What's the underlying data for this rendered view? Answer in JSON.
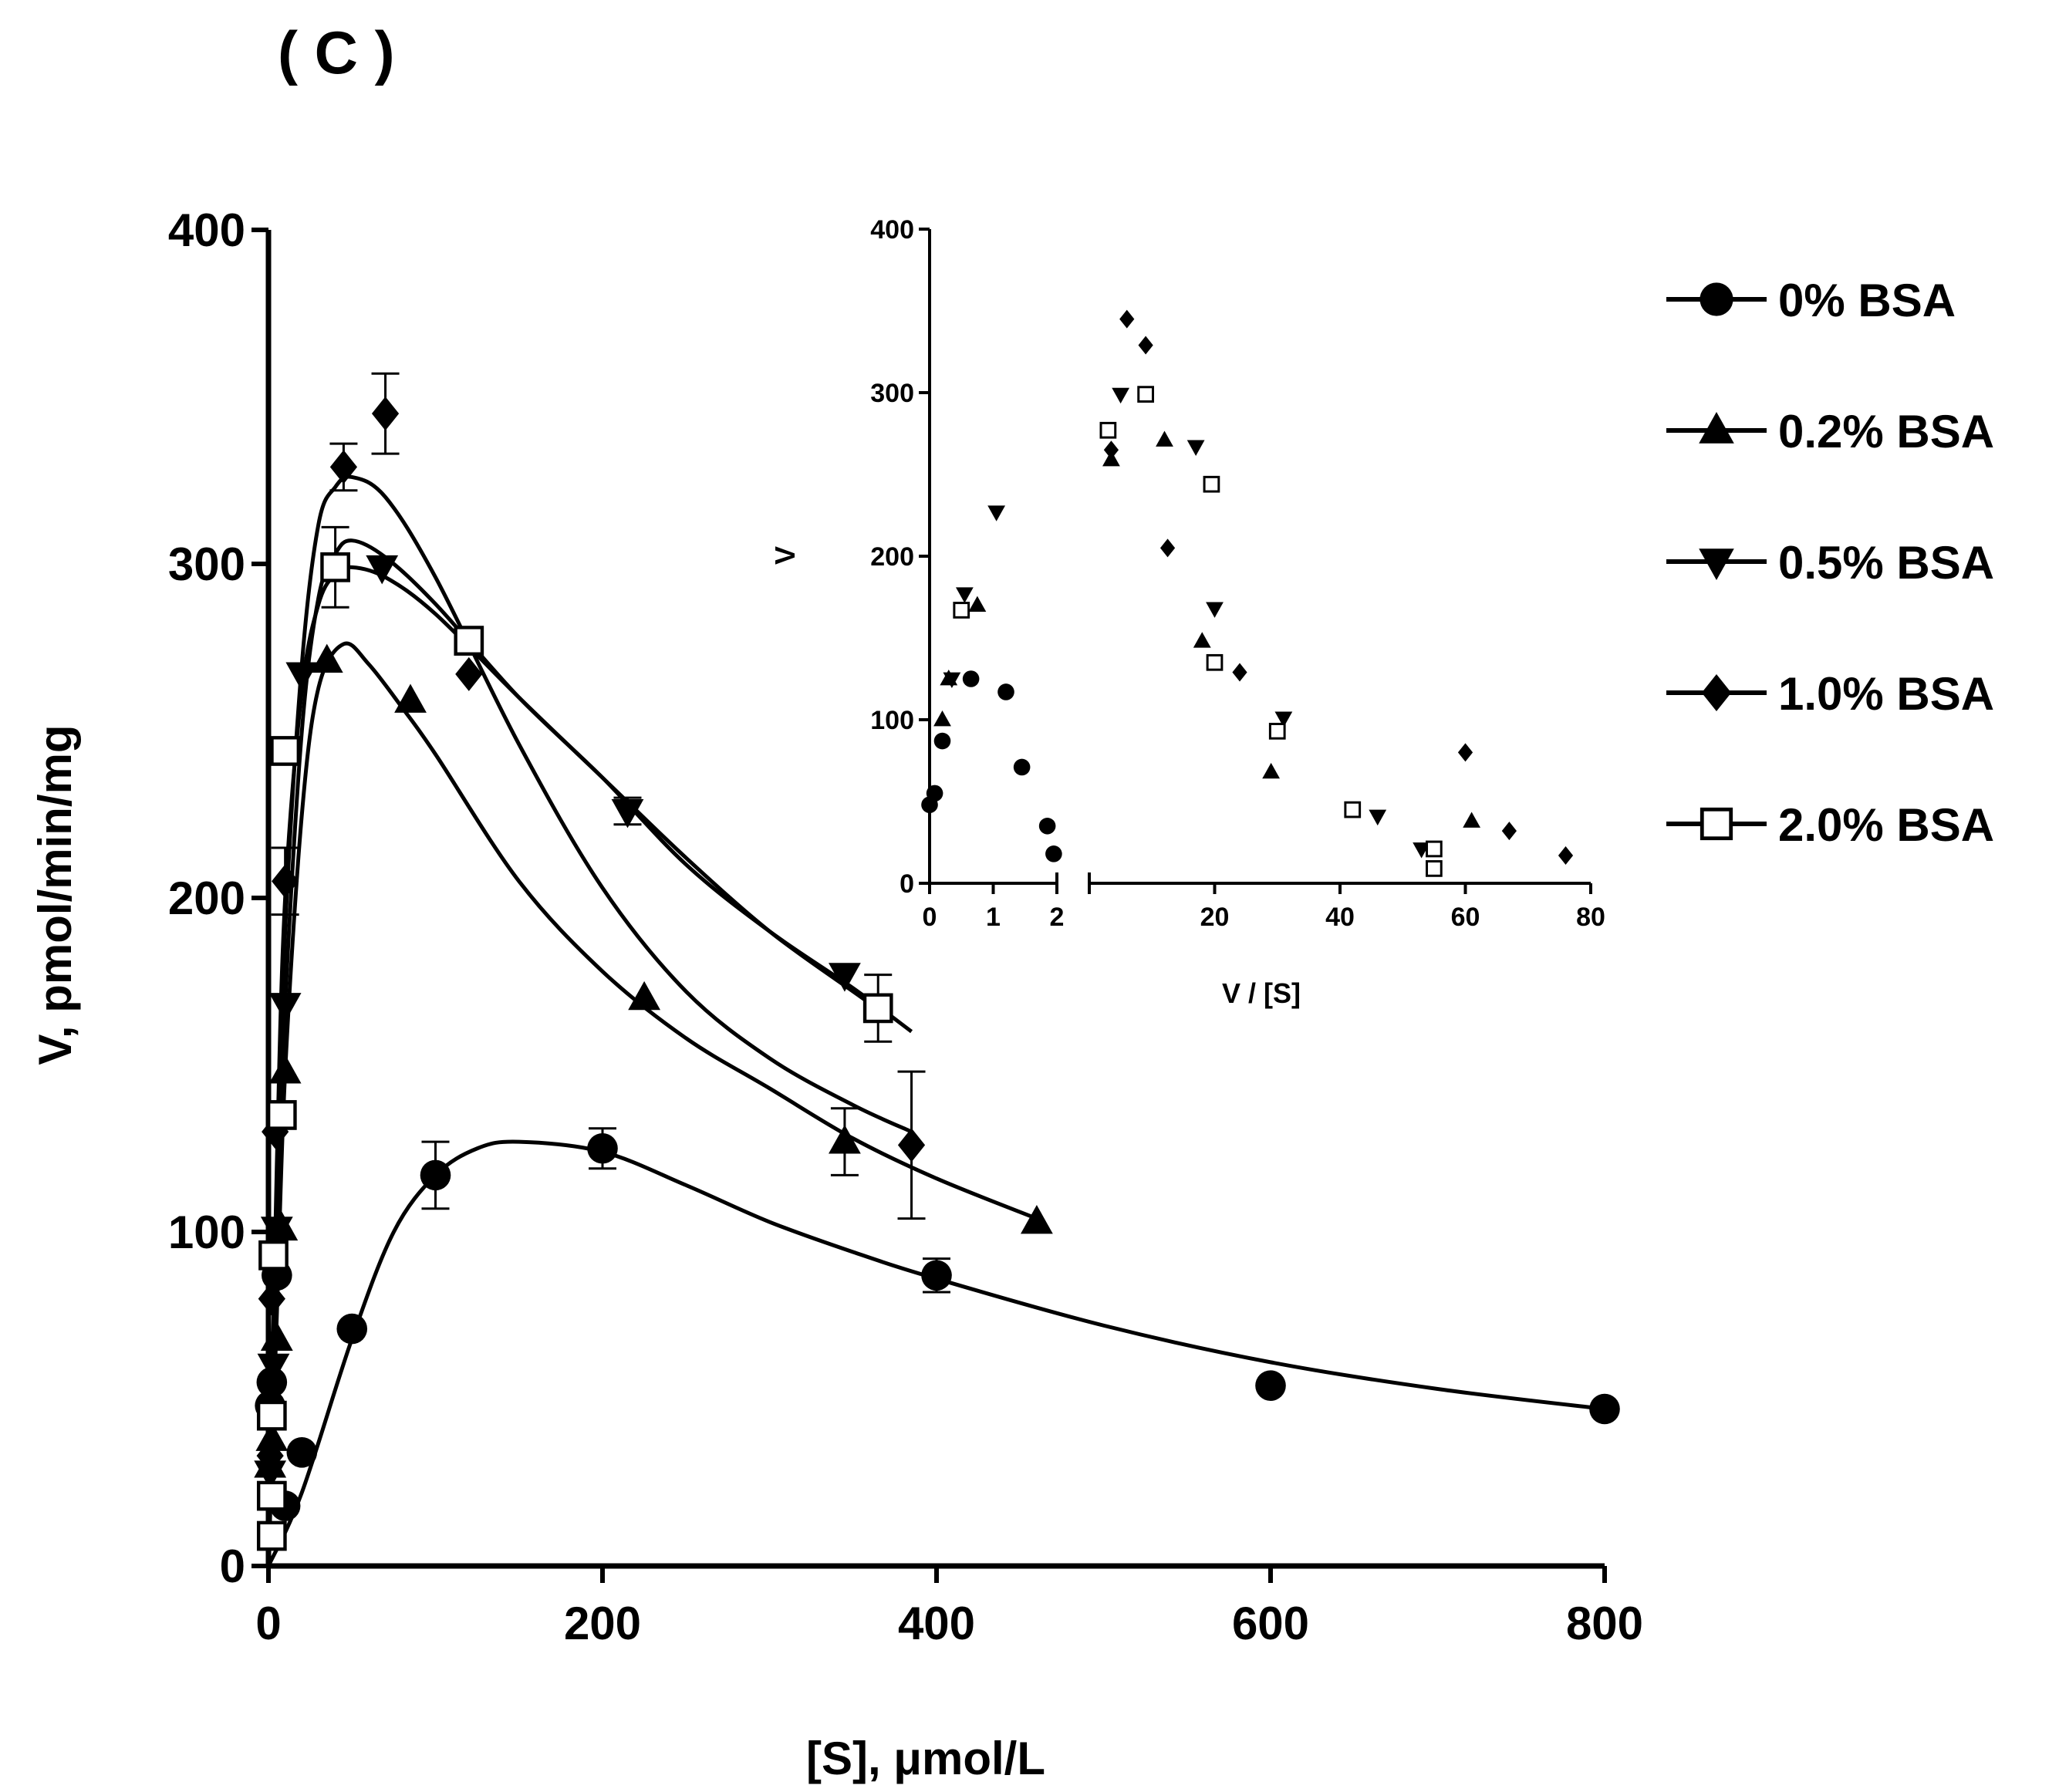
{
  "chart_data": [
    {
      "panel": "main",
      "type": "scatter",
      "panel_label": "( C )",
      "xlabel": "[S], μmol/L",
      "ylabel": "V, pmol/min/mg",
      "xlim": [
        0,
        800
      ],
      "ylim": [
        0,
        400
      ],
      "xticks": [
        0,
        200,
        400,
        600,
        800
      ],
      "yticks": [
        0,
        100,
        200,
        300,
        400
      ],
      "legend_position": "right",
      "series": [
        {
          "name": "0% BSA",
          "marker": "circle",
          "points": [
            [
              1,
              48
            ],
            [
              2,
              55
            ],
            [
              5,
              87
            ],
            [
              10,
              18
            ],
            [
              20,
              34
            ],
            [
              50,
              71
            ],
            [
              100,
              117
            ],
            [
              200,
              125
            ],
            [
              400,
              87
            ],
            [
              600,
              54
            ],
            [
              800,
              47
            ]
          ],
          "errors": [
            0,
            0,
            0,
            0,
            0,
            0,
            10,
            6,
            5,
            0,
            0
          ],
          "fit_curve": [
            [
              0,
              0
            ],
            [
              20,
              22
            ],
            [
              50,
              68
            ],
            [
              75,
              100
            ],
            [
              100,
              117
            ],
            [
              125,
              125
            ],
            [
              150,
              127
            ],
            [
              200,
              124
            ],
            [
              250,
              114
            ],
            [
              300,
              103
            ],
            [
              350,
              94
            ],
            [
              400,
              86
            ],
            [
              500,
              72
            ],
            [
              600,
              61
            ],
            [
              700,
              53
            ],
            [
              800,
              47
            ]
          ]
        },
        {
          "name": "0.2% BSA",
          "marker": "triangle-up",
          "points": [
            [
              1,
              30
            ],
            [
              2,
              38
            ],
            [
              5,
              68
            ],
            [
              8,
              101
            ],
            [
              10,
              148
            ],
            [
              35,
              271
            ],
            [
              85,
              259
            ],
            [
              225,
              170
            ],
            [
              345,
              127
            ],
            [
              460,
              103
            ]
          ],
          "errors": [
            0,
            0,
            0,
            0,
            0,
            0,
            0,
            0,
            10,
            0
          ],
          "fit_curve": [
            [
              0,
              0
            ],
            [
              5,
              75
            ],
            [
              10,
              148
            ],
            [
              20,
              225
            ],
            [
              30,
              263
            ],
            [
              45,
              276
            ],
            [
              60,
              270
            ],
            [
              80,
              257
            ],
            [
              100,
              243
            ],
            [
              150,
              205
            ],
            [
              200,
              178
            ],
            [
              250,
              158
            ],
            [
              300,
              143
            ],
            [
              350,
              128
            ],
            [
              400,
              116
            ],
            [
              460,
              104
            ]
          ]
        },
        {
          "name": "0.5% BSA",
          "marker": "triangle-down",
          "points": [
            [
              1,
              28
            ],
            [
              3,
              60
            ],
            [
              5,
              101
            ],
            [
              10,
              168
            ],
            [
              20,
              267
            ],
            [
              68,
              299
            ],
            [
              215,
              226
            ],
            [
              345,
              177
            ]
          ],
          "errors": [
            0,
            0,
            0,
            0,
            0,
            0,
            4,
            0
          ],
          "fit_curve": [
            [
              0,
              0
            ],
            [
              5,
              95
            ],
            [
              10,
              168
            ],
            [
              20,
              250
            ],
            [
              30,
              290
            ],
            [
              40,
              303
            ],
            [
              50,
              307
            ],
            [
              70,
              302
            ],
            [
              100,
              288
            ],
            [
              150,
              260
            ],
            [
              200,
              236
            ],
            [
              250,
              210
            ],
            [
              300,
              190
            ],
            [
              350,
              173
            ],
            [
              385,
              160
            ]
          ]
        },
        {
          "name": "1.0% BSA",
          "marker": "diamond",
          "points": [
            [
              1,
              33
            ],
            [
              2,
              80
            ],
            [
              4,
              130
            ],
            [
              10,
              205
            ],
            [
              45,
              329
            ],
            [
              70,
              345
            ],
            [
              120,
              267
            ],
            [
              385,
              126
            ]
          ],
          "errors": [
            0,
            0,
            0,
            10,
            7,
            12,
            0,
            22
          ],
          "fit_curve": [
            [
              0,
              0
            ],
            [
              5,
              105
            ],
            [
              10,
              190
            ],
            [
              20,
              270
            ],
            [
              30,
              312
            ],
            [
              40,
              323
            ],
            [
              50,
              326
            ],
            [
              70,
              320
            ],
            [
              100,
              296
            ],
            [
              150,
              246
            ],
            [
              200,
              203
            ],
            [
              250,
              172
            ],
            [
              300,
              152
            ],
            [
              350,
              138
            ],
            [
              385,
              130
            ]
          ]
        },
        {
          "name": "2.0% BSA",
          "marker": "square-open",
          "points": [
            [
              2,
              9
            ],
            [
              2,
              21
            ],
            [
              2,
              45
            ],
            [
              3,
              93
            ],
            [
              8,
              135
            ],
            [
              10,
              244
            ],
            [
              40,
              299
            ],
            [
              120,
              277
            ],
            [
              365,
              167
            ]
          ],
          "errors": [
            0,
            0,
            0,
            0,
            0,
            0,
            12,
            0,
            10
          ],
          "fit_curve": [
            [
              0,
              0
            ],
            [
              5,
              120
            ],
            [
              10,
              200
            ],
            [
              20,
              262
            ],
            [
              30,
              288
            ],
            [
              40,
              297
            ],
            [
              50,
              299
            ],
            [
              70,
              296
            ],
            [
              100,
              285
            ],
            [
              150,
              260
            ],
            [
              200,
              236
            ],
            [
              250,
              212
            ],
            [
              300,
              190
            ],
            [
              350,
              172
            ],
            [
              370,
              165
            ]
          ]
        }
      ]
    },
    {
      "panel": "inset",
      "type": "scatter",
      "xlabel": "V / [S]",
      "ylabel": "V",
      "ylim": [
        0,
        400
      ],
      "yticks": [
        0,
        100,
        200,
        300,
        400
      ],
      "x_axis_broken": true,
      "x_segments": [
        {
          "range": [
            0,
            2
          ],
          "ticks": [
            0,
            1,
            2
          ]
        },
        {
          "range": [
            0,
            80
          ],
          "ticks": [
            20,
            40,
            60,
            80
          ]
        }
      ],
      "series": [
        {
          "name": "0% BSA",
          "marker": "circle",
          "segment1": [
            [
              0,
              48
            ],
            [
              0.08,
              55
            ],
            [
              0.2,
              87
            ],
            [
              0.65,
              125
            ],
            [
              1.2,
              117
            ],
            [
              1.45,
              71
            ],
            [
              1.85,
              35
            ],
            [
              1.95,
              18
            ]
          ],
          "segment2": []
        },
        {
          "name": "0.2% BSA",
          "marker": "triangle-up",
          "segment1": [
            [
              0.2,
              100
            ],
            [
              0.3,
              125
            ],
            [
              0.75,
              170
            ]
          ],
          "segment2": [
            [
              3.5,
              259
            ],
            [
              12,
              271
            ],
            [
              18,
              148
            ],
            [
              29,
              68
            ],
            [
              61,
              38
            ]
          ]
        },
        {
          "name": "0.5% BSA",
          "marker": "triangle-down",
          "segment1": [
            [
              0.35,
              125
            ],
            [
              0.55,
              177
            ],
            [
              1.05,
              227
            ]
          ],
          "segment2": [
            [
              5,
              299
            ],
            [
              17,
              267
            ],
            [
              20,
              168
            ],
            [
              31,
              101
            ],
            [
              46,
              41
            ],
            [
              53,
              21
            ]
          ]
        },
        {
          "name": "1.0% BSA",
          "marker": "diamond",
          "segment1": [],
          "segment2": [
            [
              3.5,
              265
            ],
            [
              6,
              345
            ],
            [
              9,
              329
            ],
            [
              12.5,
              205
            ],
            [
              24,
              129
            ],
            [
              60,
              80
            ],
            [
              67,
              32
            ],
            [
              76,
              17
            ]
          ]
        },
        {
          "name": "2.0% BSA",
          "marker": "square-open",
          "segment1": [
            [
              0.5,
              167
            ]
          ],
          "segment2": [
            [
              3,
              277
            ],
            [
              9,
              299
            ],
            [
              19.5,
              244
            ],
            [
              20,
              135
            ],
            [
              30,
              93
            ],
            [
              42,
              45
            ],
            [
              55,
              21
            ],
            [
              55,
              9
            ]
          ]
        }
      ]
    }
  ]
}
